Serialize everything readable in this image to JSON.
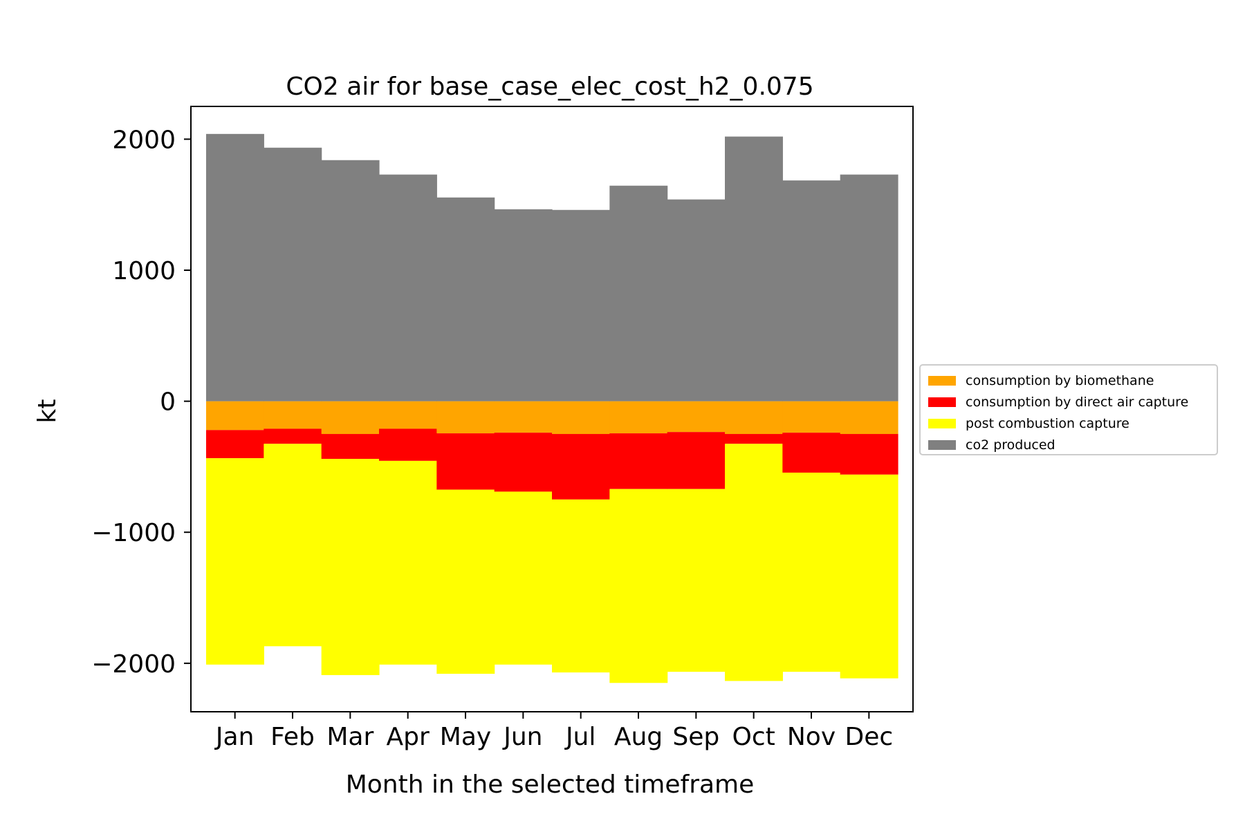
{
  "chart_data": {
    "type": "bar",
    "stacked": true,
    "diverging": true,
    "title": "CO2 air for base_case_elec_cost_h2_0.075",
    "xlabel": "Month in the selected timeframe",
    "ylabel": "kt",
    "ylim": [
      -2370,
      2250
    ],
    "yticks": [
      2000,
      1000,
      0,
      -1000,
      -2000
    ],
    "ytick_labels": [
      "2000",
      "1000",
      "0",
      "−1000",
      "−2000"
    ],
    "categories": [
      "Jan",
      "Feb",
      "Mar",
      "Apr",
      "May",
      "Jun",
      "Jul",
      "Aug",
      "Sep",
      "Oct",
      "Nov",
      "Dec"
    ],
    "series": [
      {
        "name": "consumption by biomethane",
        "color": "#ffa500",
        "values": [
          -220,
          -210,
          -250,
          -210,
          -245,
          -240,
          -250,
          -245,
          -235,
          -250,
          -240,
          -250
        ]
      },
      {
        "name": "consumption by direct air capture",
        "color": "#ff0000",
        "values": [
          -215,
          -115,
          -190,
          -245,
          -430,
          -450,
          -500,
          -425,
          -435,
          -75,
          -305,
          -310
        ]
      },
      {
        "name": "post combustion capture",
        "color": "#ffff00",
        "values": [
          -1575,
          -1545,
          -1650,
          -1555,
          -1405,
          -1320,
          -1320,
          -1480,
          -1395,
          -1810,
          -1520,
          -1555
        ]
      },
      {
        "name": "co2 produced",
        "color": "#808080",
        "values": [
          2040,
          1935,
          1840,
          1730,
          1555,
          1465,
          1460,
          1645,
          1540,
          2020,
          1685,
          1730
        ]
      }
    ],
    "legend": {
      "placement": "outside-right",
      "entries": [
        "consumption by biomethane",
        "consumption by direct air capture",
        "post combustion capture",
        "co2 produced"
      ]
    },
    "grid": false
  }
}
